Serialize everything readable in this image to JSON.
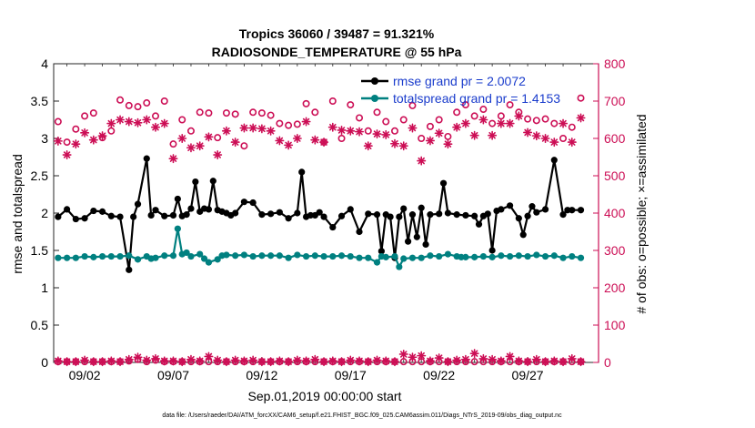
{
  "chart_data": {
    "type": "line",
    "title": "Tropics 36060 / 39487 = 91.321%",
    "subtitle": "RADIOSONDE_TEMPERATURE @ 55 hPa",
    "xlabel": "Sep.01,2019 00:00:00 start",
    "ylabel_left": "rmse and totalspread",
    "ylabel_right": "# of obs: o=possible; ×=assimilated",
    "ylim_left": [
      0,
      4
    ],
    "ylim_right": [
      0,
      800
    ],
    "xlim": [
      0.25,
      31.0
    ],
    "left_ticks": [
      "0",
      "0.5",
      "1",
      "1.5",
      "2",
      "2.5",
      "3",
      "3.5",
      "4"
    ],
    "right_ticks": [
      "0",
      "100",
      "200",
      "300",
      "400",
      "500",
      "600",
      "700",
      "800"
    ],
    "x_ticks": [
      {
        "x": 2,
        "label": "09/02"
      },
      {
        "x": 7,
        "label": "09/07"
      },
      {
        "x": 12,
        "label": "09/12"
      },
      {
        "x": 17,
        "label": "09/17"
      },
      {
        "x": 22,
        "label": "09/22"
      },
      {
        "x": 27,
        "label": "09/27"
      }
    ],
    "footer": "data file: /Users/raeder/DAI/ATM_forcXX/CAM6_setup/f.e21.FHIST_BGC.f09_025.CAM6assim.011/Diags_NTrS_2019-09/obs_diag_output.nc",
    "colors": {
      "rmse": "#000000",
      "spread": "#008080",
      "obs": "#cc0e55"
    },
    "series": [
      {
        "name": "rmse grand pr = 2.0072",
        "axis": "left",
        "x": [
          0.5,
          1.0,
          1.5,
          2.0,
          2.5,
          3.0,
          3.5,
          4.0,
          4.5,
          4.75,
          5.0,
          5.5,
          5.75,
          6.0,
          6.5,
          7.0,
          7.25,
          7.5,
          7.75,
          8.0,
          8.25,
          8.5,
          8.75,
          9.0,
          9.25,
          9.5,
          9.75,
          10.0,
          10.25,
          10.5,
          11.0,
          11.5,
          12.0,
          12.5,
          13.0,
          13.5,
          14.0,
          14.25,
          14.5,
          14.75,
          15.0,
          15.25,
          15.5,
          16.0,
          16.5,
          17.0,
          17.5,
          18.0,
          18.5,
          18.75,
          19.0,
          19.25,
          19.5,
          19.75,
          20.0,
          20.25,
          20.5,
          20.75,
          21.0,
          21.25,
          21.5,
          22.0,
          22.25,
          22.5,
          23.0,
          23.5,
          24.0,
          24.25,
          24.5,
          24.75,
          25.0,
          25.25,
          25.5,
          26.0,
          26.5,
          26.75,
          27.0,
          27.25,
          27.5,
          28.0,
          28.5,
          29.0,
          29.25,
          29.5,
          30.0
        ],
        "values": [
          1.95,
          2.05,
          1.92,
          1.93,
          2.03,
          2.02,
          1.96,
          1.95,
          1.24,
          1.95,
          2.12,
          2.73,
          1.97,
          2.04,
          1.96,
          1.97,
          2.19,
          1.96,
          1.98,
          2.06,
          2.42,
          2.02,
          2.06,
          2.05,
          2.43,
          2.04,
          2.02,
          2.0,
          1.97,
          2.0,
          2.15,
          2.14,
          1.98,
          1.99,
          2.01,
          1.93,
          2.0,
          2.55,
          1.95,
          1.97,
          1.97,
          2.01,
          1.95,
          1.81,
          1.96,
          2.05,
          1.75,
          1.99,
          1.98,
          1.49,
          1.98,
          1.95,
          1.4,
          1.95,
          2.06,
          1.62,
          1.98,
          1.68,
          2.07,
          1.58,
          1.98,
          1.99,
          2.4,
          2.0,
          1.98,
          1.97,
          1.96,
          1.85,
          1.96,
          1.99,
          1.5,
          2.03,
          2.05,
          2.1,
          1.93,
          1.71,
          1.96,
          2.09,
          2.01,
          2.05,
          2.71,
          1.98,
          2.04,
          2.04,
          2.04
        ]
      },
      {
        "name": "totalspread grand pr = 1.4153",
        "axis": "left",
        "x": [
          0.5,
          1.0,
          1.5,
          2.0,
          2.5,
          3.0,
          3.5,
          4.0,
          4.5,
          5.0,
          5.5,
          5.75,
          6.0,
          6.5,
          7.0,
          7.25,
          7.5,
          7.75,
          8.0,
          8.5,
          8.75,
          9.0,
          9.5,
          9.75,
          10.0,
          10.5,
          11.0,
          11.5,
          12.0,
          12.5,
          13.0,
          13.5,
          14.0,
          14.5,
          15.0,
          15.5,
          16.0,
          16.5,
          17.0,
          17.5,
          18.0,
          18.5,
          18.75,
          19.0,
          19.5,
          19.75,
          20.0,
          20.5,
          21.0,
          21.5,
          22.0,
          22.5,
          23.0,
          23.25,
          23.5,
          24.0,
          24.5,
          25.0,
          25.5,
          26.0,
          26.5,
          27.0,
          27.5,
          28.0,
          28.5,
          29.0,
          29.5,
          30.0
        ],
        "values": [
          1.4,
          1.4,
          1.4,
          1.42,
          1.41,
          1.42,
          1.42,
          1.42,
          1.43,
          1.38,
          1.42,
          1.39,
          1.4,
          1.43,
          1.43,
          1.79,
          1.45,
          1.47,
          1.42,
          1.45,
          1.39,
          1.34,
          1.38,
          1.43,
          1.44,
          1.43,
          1.44,
          1.42,
          1.43,
          1.43,
          1.43,
          1.4,
          1.44,
          1.42,
          1.43,
          1.42,
          1.42,
          1.43,
          1.42,
          1.4,
          1.4,
          1.34,
          1.42,
          1.41,
          1.42,
          1.28,
          1.39,
          1.4,
          1.4,
          1.43,
          1.42,
          1.45,
          1.42,
          1.41,
          1.41,
          1.41,
          1.42,
          1.41,
          1.43,
          1.42,
          1.43,
          1.42,
          1.44,
          1.42,
          1.43,
          1.4,
          1.42,
          1.4
        ]
      },
      {
        "name": "possible",
        "axis": "right",
        "x": [
          0.5,
          1.0,
          1.5,
          2.0,
          2.5,
          3.0,
          3.5,
          4.0,
          4.5,
          5.0,
          5.5,
          6.0,
          6.5,
          7.0,
          7.5,
          8.0,
          8.5,
          9.0,
          9.5,
          10.0,
          10.5,
          11.0,
          11.5,
          12.0,
          12.5,
          13.0,
          13.5,
          14.0,
          14.5,
          15.0,
          15.5,
          16.0,
          16.5,
          17.0,
          17.5,
          18.0,
          18.5,
          19.0,
          19.5,
          20.0,
          20.5,
          21.0,
          21.5,
          22.0,
          22.5,
          23.0,
          23.5,
          24.0,
          24.5,
          25.0,
          25.5,
          26.0,
          26.5,
          27.0,
          27.5,
          28.0,
          28.5,
          29.0,
          29.5,
          30.0
        ],
        "values": [
          645,
          590,
          625,
          660,
          668,
          602,
          620,
          703,
          688,
          685,
          695,
          660,
          700,
          585,
          650,
          620,
          670,
          668,
          602,
          668,
          665,
          580,
          670,
          668,
          662,
          640,
          635,
          638,
          693,
          670,
          590,
          700,
          600,
          690,
          655,
          620,
          670,
          645,
          620,
          650,
          688,
          600,
          632,
          650,
          605,
          670,
          690,
          660,
          678,
          640,
          660,
          690,
          670,
          652,
          648,
          652,
          640,
          600,
          630,
          708
        ],
        "marker": "circle"
      },
      {
        "name": "assimilated",
        "axis": "right",
        "x": [
          0.5,
          1.0,
          1.5,
          2.0,
          2.5,
          3.0,
          3.5,
          4.0,
          4.5,
          5.0,
          5.5,
          6.0,
          6.5,
          7.0,
          7.5,
          8.0,
          8.5,
          9.0,
          9.5,
          10.0,
          10.5,
          11.0,
          11.5,
          12.0,
          12.5,
          13.0,
          13.5,
          14.0,
          14.5,
          15.0,
          15.5,
          16.0,
          16.5,
          17.0,
          17.5,
          18.0,
          18.5,
          19.0,
          19.5,
          20.0,
          20.5,
          21.0,
          21.5,
          22.0,
          22.5,
          23.0,
          23.5,
          24.0,
          24.5,
          25.0,
          25.5,
          26.0,
          26.5,
          27.0,
          27.5,
          28.0,
          28.5,
          29.0,
          29.5,
          30.0
        ],
        "values": [
          593,
          556,
          585,
          615,
          596,
          607,
          640,
          650,
          645,
          642,
          650,
          630,
          640,
          546,
          600,
          575,
          580,
          604,
          556,
          620,
          590,
          628,
          628,
          626,
          620,
          594,
          582,
          600,
          645,
          596,
          590,
          630,
          622,
          620,
          618,
          580,
          612,
          610,
          586,
          580,
          628,
          540,
          594,
          614,
          585,
          630,
          640,
          608,
          650,
          608,
          640,
          640,
          660,
          616,
          607,
          600,
          590,
          640,
          590,
          655
        ],
        "marker": "asterisk"
      },
      {
        "name": "rejected-possible",
        "axis": "right",
        "x": [
          0.5,
          1.0,
          1.5,
          2.0,
          2.5,
          3.0,
          3.5,
          4.0,
          4.5,
          5.0,
          5.5,
          6.0,
          6.5,
          7.0,
          7.5,
          8.0,
          8.5,
          9.0,
          9.5,
          10.0,
          10.5,
          11.0,
          11.5,
          12.0,
          12.5,
          13.0,
          13.5,
          14.0,
          14.5,
          15.0,
          15.5,
          16.0,
          16.5,
          17.0,
          17.5,
          18.0,
          18.5,
          19.0,
          19.5,
          20.0,
          20.5,
          21.0,
          21.5,
          22.0,
          22.5,
          23.0,
          23.5,
          24.0,
          24.5,
          25.0,
          25.5,
          26.0,
          26.5,
          27.0,
          27.5,
          28.0,
          28.5,
          29.0,
          29.5,
          30.0
        ],
        "values": [
          2,
          2,
          2,
          2,
          2,
          2,
          2,
          2,
          4,
          8,
          2,
          6,
          2,
          2,
          2,
          2,
          2,
          2,
          2,
          2,
          2,
          2,
          2,
          2,
          2,
          2,
          2,
          2,
          2,
          2,
          2,
          2,
          2,
          2,
          2,
          2,
          2,
          2,
          2,
          2,
          2,
          2,
          2,
          2,
          2,
          2,
          2,
          2,
          2,
          2,
          2,
          2,
          2,
          2,
          2,
          2,
          2,
          2,
          2,
          2
        ],
        "marker": "circle-base"
      },
      {
        "name": "rejected-assimilated",
        "axis": "right",
        "x": [
          0.5,
          1.0,
          1.5,
          2.0,
          2.5,
          3.0,
          3.5,
          4.0,
          4.5,
          5.0,
          5.5,
          6.0,
          6.5,
          7.0,
          7.5,
          8.0,
          8.5,
          9.0,
          9.5,
          10.0,
          10.5,
          11.0,
          11.5,
          12.0,
          12.5,
          13.0,
          13.5,
          14.0,
          14.5,
          15.0,
          15.5,
          16.0,
          16.5,
          17.0,
          17.5,
          18.0,
          18.5,
          19.0,
          19.5,
          20.0,
          20.5,
          21.0,
          21.5,
          22.0,
          22.5,
          23.0,
          23.5,
          24.0,
          24.5,
          25.0,
          25.5,
          26.0,
          26.5,
          27.0,
          27.5,
          28.0,
          28.5,
          29.0,
          29.5,
          30.0
        ],
        "values": [
          4,
          2,
          2,
          6,
          2,
          2,
          4,
          2,
          8,
          14,
          6,
          10,
          4,
          4,
          2,
          8,
          4,
          16,
          6,
          2,
          6,
          4,
          6,
          2,
          2,
          4,
          2,
          6,
          4,
          8,
          2,
          4,
          2,
          6,
          4,
          2,
          6,
          4,
          2,
          22,
          14,
          18,
          4,
          12,
          2,
          6,
          8,
          24,
          10,
          8,
          4,
          16,
          4,
          2,
          8,
          2,
          4,
          2,
          10,
          2
        ],
        "marker": "asterisk-base"
      }
    ]
  }
}
